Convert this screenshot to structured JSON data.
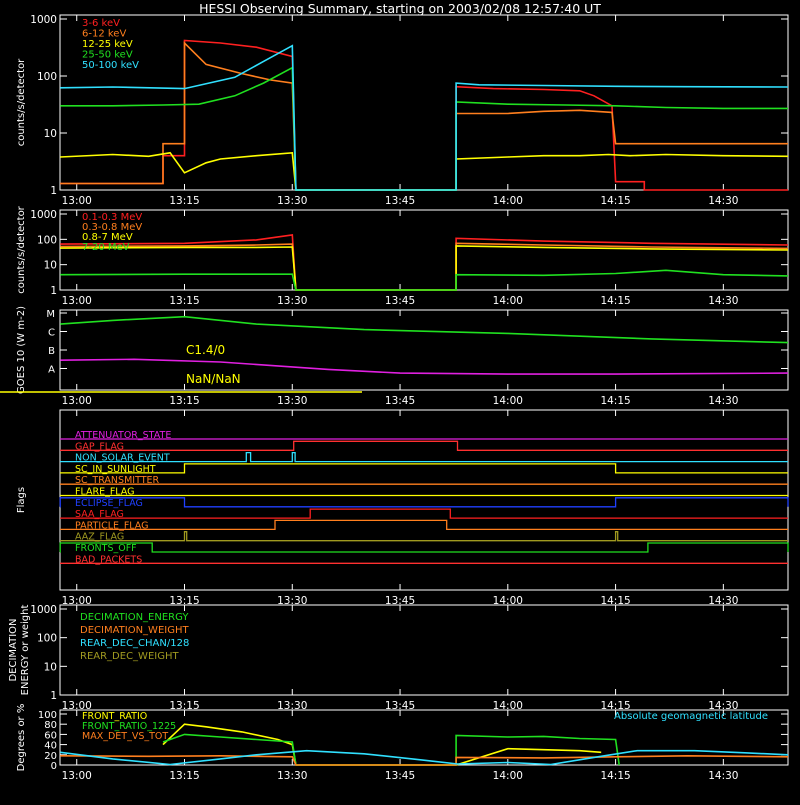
{
  "title": "HESSI Observing Summary, starting on 2003/02/08 12:57:40 UT",
  "time_ticks": [
    "13:00",
    "13:15",
    "13:30",
    "13:45",
    "14:00",
    "14:15",
    "14:30"
  ],
  "time_tick_minutes": [
    180,
    195,
    210,
    225,
    240,
    255,
    270
  ],
  "time_range_minutes": [
    177.67,
    279.0
  ],
  "colors": {
    "background": "#000000",
    "axis": "#ffffff",
    "red": "#ff2020",
    "orange": "#ff7f1e",
    "yellow": "#ffff00",
    "green": "#20e020",
    "cyan": "#30e0ff",
    "magenta": "#e020e0",
    "blue": "#2040ff",
    "olive": "#a09a20",
    "crimson": "#ff3030"
  },
  "chart_data": [
    {
      "id": "countrate_low",
      "type": "line",
      "ylabel": "counts/s/detector",
      "yscale": "log",
      "ylim": [
        1,
        1000
      ],
      "yticks": [
        "1",
        "10",
        "100",
        "1000"
      ],
      "legend_position": "top-left",
      "series": [
        {
          "name": "3-6 keV",
          "color": "#ff2020",
          "points": [
            [
              177.7,
              1.3
            ],
            [
              192,
              1.3
            ],
            [
              192,
              4
            ],
            [
              195,
              4
            ],
            [
              195,
              420
            ],
            [
              200,
              380
            ],
            [
              205,
              320
            ],
            [
              210,
              220
            ],
            [
              210.5,
              1
            ],
            [
              232.8,
              1
            ],
            [
              232.8,
              65
            ],
            [
              238,
              60
            ],
            [
              245,
              58
            ],
            [
              250,
              55
            ],
            [
              252,
              45
            ],
            [
              254.5,
              30
            ],
            [
              255,
              1.4
            ],
            [
              259,
              1.4
            ],
            [
              259,
              1
            ],
            [
              279,
              1
            ]
          ]
        },
        {
          "name": "6-12 keV",
          "color": "#ff7f1e",
          "points": [
            [
              177.7,
              1.3
            ],
            [
              192,
              1.3
            ],
            [
              192,
              6.5
            ],
            [
              195,
              6.5
            ],
            [
              195,
              380
            ],
            [
              198,
              160
            ],
            [
              203,
              110
            ],
            [
              207,
              85
            ],
            [
              210,
              75
            ],
            [
              210.5,
              1
            ],
            [
              232.8,
              1
            ],
            [
              232.8,
              22
            ],
            [
              240,
              22
            ],
            [
              245,
              24
            ],
            [
              250,
              25
            ],
            [
              254.5,
              23
            ],
            [
              255,
              6.5
            ],
            [
              265,
              6.5
            ],
            [
              279,
              6.5
            ]
          ]
        },
        {
          "name": "12-25 keV",
          "color": "#ffff00",
          "points": [
            [
              177.7,
              3.8
            ],
            [
              185,
              4.2
            ],
            [
              190,
              3.9
            ],
            [
              193,
              4.5
            ],
            [
              195,
              2
            ],
            [
              198,
              3
            ],
            [
              200,
              3.5
            ],
            [
              205,
              4
            ],
            [
              210,
              4.5
            ],
            [
              210.5,
              1
            ],
            [
              232.8,
              1
            ],
            [
              232.8,
              3.5
            ],
            [
              240,
              3.8
            ],
            [
              245,
              4
            ],
            [
              250,
              4
            ],
            [
              254,
              4.2
            ],
            [
              257,
              4
            ],
            [
              262,
              4.2
            ],
            [
              270,
              4
            ],
            [
              279,
              3.9
            ]
          ]
        },
        {
          "name": "25-50 keV",
          "color": "#20e020",
          "points": [
            [
              177.7,
              30
            ],
            [
              185,
              30
            ],
            [
              192,
              31
            ],
            [
              197,
              32
            ],
            [
              202,
              45
            ],
            [
              206,
              75
            ],
            [
              210,
              140
            ],
            [
              210.5,
              1
            ],
            [
              232.8,
              1
            ],
            [
              232.8,
              35
            ],
            [
              240,
              32
            ],
            [
              248,
              31
            ],
            [
              255,
              30
            ],
            [
              262,
              28
            ],
            [
              270,
              27
            ],
            [
              279,
              27
            ]
          ]
        },
        {
          "name": "50-100 keV",
          "color": "#30e0ff",
          "points": [
            [
              177.7,
              62
            ],
            [
              185,
              64
            ],
            [
              195,
              60
            ],
            [
              202,
              95
            ],
            [
              206,
              180
            ],
            [
              210,
              340
            ],
            [
              210.5,
              1
            ],
            [
              232.8,
              1
            ],
            [
              232.8,
              75
            ],
            [
              236,
              70
            ],
            [
              245,
              68
            ],
            [
              255,
              66
            ],
            [
              265,
              65
            ],
            [
              279,
              64
            ]
          ]
        }
      ]
    },
    {
      "id": "countrate_high",
      "type": "line",
      "ylabel": "counts/s/detector",
      "yscale": "log",
      "ylim": [
        1,
        1000
      ],
      "yticks": [
        "1",
        "10",
        "100",
        "1000"
      ],
      "legend_position": "top-left",
      "series": [
        {
          "name": "0.1-0.3 MeV",
          "color": "#ff2020",
          "points": [
            [
              177.7,
              65
            ],
            [
              195,
              70
            ],
            [
              205,
              95
            ],
            [
              210,
              150
            ],
            [
              210.5,
              1
            ],
            [
              232.8,
              1
            ],
            [
              232.8,
              110
            ],
            [
              245,
              85
            ],
            [
              260,
              70
            ],
            [
              279,
              60
            ]
          ]
        },
        {
          "name": "0.3-0.8 MeV",
          "color": "#ff7f1e",
          "points": [
            [
              177.7,
              52
            ],
            [
              195,
              55
            ],
            [
              205,
              60
            ],
            [
              210,
              65
            ],
            [
              210.5,
              1
            ],
            [
              232.8,
              1
            ],
            [
              232.8,
              70
            ],
            [
              245,
              60
            ],
            [
              260,
              50
            ],
            [
              279,
              44
            ]
          ]
        },
        {
          "name": "0.8-7 MeV",
          "color": "#ffff00",
          "points": [
            [
              177.7,
              45
            ],
            [
              195,
              48
            ],
            [
              205,
              48
            ],
            [
              210,
              50
            ],
            [
              210.5,
              1
            ],
            [
              232.8,
              1
            ],
            [
              232.8,
              55
            ],
            [
              245,
              48
            ],
            [
              260,
              42
            ],
            [
              279,
              38
            ]
          ]
        },
        {
          "name": "7-20 MeV",
          "color": "#20e020",
          "points": [
            [
              177.7,
              4
            ],
            [
              195,
              4.2
            ],
            [
              210,
              4.2
            ],
            [
              210.5,
              1
            ],
            [
              232.8,
              1
            ],
            [
              232.8,
              4
            ],
            [
              245,
              3.8
            ],
            [
              255,
              4.5
            ],
            [
              262,
              6
            ],
            [
              270,
              4
            ],
            [
              279,
              3.6
            ]
          ]
        }
      ]
    },
    {
      "id": "goes",
      "type": "line",
      "ylabel": "GOES 10 (W m-2)",
      "ytick_labels": [
        "A",
        "B",
        "C",
        "M"
      ],
      "annotations": [
        "C1.4/0",
        "NaN/NaN"
      ],
      "series": [
        {
          "name": "GOES long",
          "color": "#20e020",
          "points": [
            [
              177.7,
              3.4
            ],
            [
              185,
              3.6
            ],
            [
              195,
              3.8
            ],
            [
              205,
              3.4
            ],
            [
              220,
              3.1
            ],
            [
              240,
              2.9
            ],
            [
              260,
              2.6
            ],
            [
              279,
              2.4
            ]
          ]
        },
        {
          "name": "GOES short",
          "color": "#e020e0",
          "points": [
            [
              177.7,
              1.45
            ],
            [
              188,
              1.5
            ],
            [
              200,
              1.35
            ],
            [
              215,
              0.95
            ],
            [
              225,
              0.75
            ],
            [
              240,
              0.7
            ],
            [
              255,
              0.7
            ],
            [
              279,
              0.75
            ]
          ]
        }
      ]
    },
    {
      "id": "flags",
      "type": "line",
      "ylabel": "Flags",
      "flags": [
        {
          "label": "ATTENUATOR_STATE",
          "color": "#e020e0",
          "segments": []
        },
        {
          "label": "GAP_FLAG",
          "color": "#ff3030",
          "segments": [
            [
              210.2,
              233
            ]
          ]
        },
        {
          "label": "NON_SOLAR_EVENT",
          "color": "#30e0ff",
          "segments": [
            [
              203.6,
              204.2
            ],
            [
              210,
              210.4
            ]
          ]
        },
        {
          "label": "SC_IN_SUNLIGHT",
          "color": "#ffff00",
          "segments": [
            [
              195,
              255
            ]
          ]
        },
        {
          "label": "SC_TRANSMITTER",
          "color": "#ff7f1e",
          "segments": []
        },
        {
          "label": "FLARE_FLAG",
          "color": "#ffff00",
          "segments": []
        },
        {
          "label": "ECLIPSE_FLAG",
          "color": "#2040ff",
          "segments": [
            [
              177.7,
              195
            ],
            [
              255,
              279
            ]
          ]
        },
        {
          "label": "SAA_FLAG",
          "color": "#ff2020",
          "segments": [
            [
              212.5,
              232
            ]
          ]
        },
        {
          "label": "PARTICLE_FLAG",
          "color": "#ff7f1e",
          "segments": [
            [
              207.6,
              231.5
            ]
          ]
        },
        {
          "label": "AAZ_FLAG",
          "color": "#a09a20",
          "segments": [
            [
              195,
              195.3
            ],
            [
              255,
              255.3
            ]
          ]
        },
        {
          "label": "FRONTS_OFF",
          "color": "#20e020",
          "segments": [
            [
              177.7,
              190.5
            ],
            [
              259.5,
              279
            ]
          ]
        },
        {
          "label": "BAD_PACKETS",
          "color": "#ff3030",
          "segments": []
        }
      ]
    },
    {
      "id": "decimation",
      "type": "line",
      "ylabel": "DECIMATION ENERGY or weight",
      "yscale": "log",
      "yticks": [
        "1",
        "10",
        "100",
        "1000"
      ],
      "series": [
        {
          "name": "DECIMATION_ENERGY",
          "color": "#20e020"
        },
        {
          "name": "DECIMATION_WEIGHT",
          "color": "#ff7f1e"
        },
        {
          "name": "REAR_DEC_CHAN/128",
          "color": "#30e0ff"
        },
        {
          "name": "REAR_DEC_WEIGHT",
          "color": "#a09a20"
        }
      ]
    },
    {
      "id": "ratios",
      "type": "line",
      "ylabel": "Degrees or %",
      "ylim": [
        0,
        100
      ],
      "yticks": [
        "0",
        "20",
        "40",
        "60",
        "80",
        "100"
      ],
      "legend_right": "Absolute geomagnetic latitude",
      "series": [
        {
          "name": "FRONT_RATIO",
          "color": "#ffff00",
          "points": [
            [
              192,
              40
            ],
            [
              195,
              80
            ],
            [
              198,
              75
            ],
            [
              203,
              65
            ],
            [
              208,
              50
            ],
            [
              210,
              40
            ],
            [
              210.5,
              0
            ],
            [
              232.8,
              0
            ],
            [
              240,
              32
            ],
            [
              245,
              30
            ],
            [
              250,
              28
            ],
            [
              253,
              25
            ]
          ]
        },
        {
          "name": "FRONT_RATIO_1225",
          "color": "#20e020",
          "points": [
            [
              192,
              45
            ],
            [
              195,
              60
            ],
            [
              200,
              55
            ],
            [
              205,
              50
            ],
            [
              210,
              45
            ],
            [
              210.5,
              0
            ],
            [
              232.8,
              0
            ],
            [
              232.8,
              58
            ],
            [
              240,
              55
            ],
            [
              245,
              56
            ],
            [
              250,
              52
            ],
            [
              255,
              50
            ],
            [
              255.5,
              0
            ]
          ]
        },
        {
          "name": "MAX_DET_VS_TOT",
          "color": "#ff7f1e",
          "points": [
            [
              177.7,
              18
            ],
            [
              190,
              17
            ],
            [
              200,
              18
            ],
            [
              210,
              16
            ],
            [
              210.5,
              0
            ],
            [
              232.8,
              0
            ],
            [
              232.8,
              15
            ],
            [
              245,
              14
            ],
            [
              255,
              16
            ],
            [
              265,
              18
            ],
            [
              279,
              16
            ]
          ]
        },
        {
          "name": "Absolute geomagnetic latitude",
          "color": "#30e0ff",
          "points": [
            [
              177.7,
              25
            ],
            [
              185,
              12
            ],
            [
              193,
              1
            ],
            [
              200,
              12
            ],
            [
              205,
              20
            ],
            [
              212,
              28
            ],
            [
              220,
              22
            ],
            [
              228,
              10
            ],
            [
              233,
              2
            ],
            [
              240,
              5
            ],
            [
              246,
              1
            ],
            [
              252,
              15
            ],
            [
              258,
              28
            ],
            [
              266,
              28
            ],
            [
              273,
              24
            ],
            [
              279,
              20
            ]
          ]
        }
      ]
    }
  ]
}
